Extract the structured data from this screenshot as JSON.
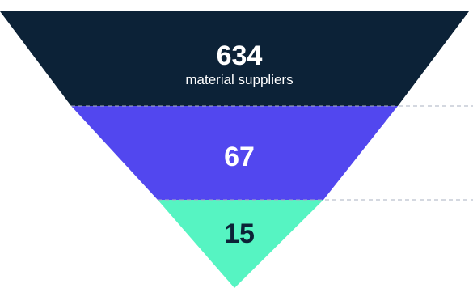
{
  "funnel": {
    "colors": {
      "background": "#ffffff",
      "divider": "#aab0c2"
    },
    "stages": [
      {
        "value": "634",
        "caption": "material suppliers",
        "fill": "#0c2237",
        "text_color": "#ffffff"
      },
      {
        "value": "67",
        "fill": "#5247ef",
        "text_color": "#ffffff"
      },
      {
        "value": "15",
        "fill": "#56f4c2",
        "text_color": "#0c2237"
      }
    ]
  }
}
